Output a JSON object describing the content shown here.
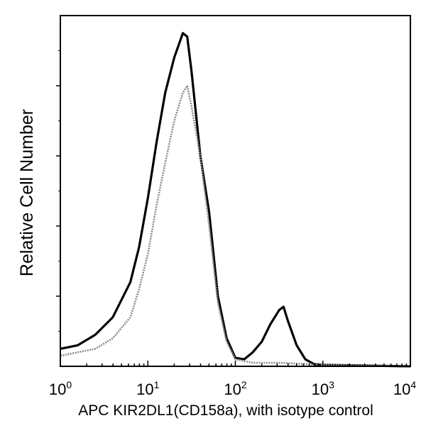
{
  "chart_data": {
    "type": "line",
    "title": "",
    "xlabel": "APC KIR2DL1(CD158a), with isotype control",
    "ylabel": "Relative Cell Number",
    "x_scale": "log",
    "xlim": [
      1,
      10000
    ],
    "ylim": [
      0,
      5
    ],
    "x_ticks": [
      {
        "base": "10",
        "exp": "0",
        "value": 1
      },
      {
        "base": "10",
        "exp": "1",
        "value": 10
      },
      {
        "base": "10",
        "exp": "2",
        "value": 100
      },
      {
        "base": "10",
        "exp": "3",
        "value": 1000
      },
      {
        "base": "10",
        "exp": "4",
        "value": 10000
      }
    ],
    "y_ticks_unlabeled": [
      1,
      2,
      3,
      4
    ],
    "grid": false,
    "legend": "none",
    "series": [
      {
        "color": "#000000",
        "x": [
          1,
          1.58,
          2.51,
          3.98,
          6.31,
          7.94,
          10,
          12.6,
          15.8,
          20,
          25.1,
          28.2,
          31.6,
          39.8,
          50.1,
          63.1,
          79.4,
          100,
          126,
          158,
          200,
          251,
          316,
          355,
          398,
          501,
          631,
          794,
          1000,
          10000
        ],
        "y": [
          0.25,
          0.3,
          0.45,
          0.7,
          1.2,
          1.7,
          2.4,
          3.2,
          3.9,
          4.4,
          4.75,
          4.7,
          4.2,
          3.0,
          2.2,
          1.0,
          0.4,
          0.12,
          0.1,
          0.2,
          0.35,
          0.6,
          0.8,
          0.85,
          0.65,
          0.3,
          0.1,
          0.03,
          0.02,
          0
        ]
      },
      {
        "color": "#8a8a8a",
        "x": [
          1,
          2.51,
          3.98,
          6.31,
          7.94,
          10,
          12.6,
          15.8,
          20,
          25.1,
          28.2,
          31.6,
          39.8,
          50.1,
          63.1,
          79.4,
          100,
          158,
          316,
          1000,
          10000
        ],
        "y": [
          0.15,
          0.25,
          0.4,
          0.7,
          1.1,
          1.6,
          2.3,
          2.9,
          3.5,
          3.9,
          4.0,
          3.7,
          3.0,
          2.0,
          0.9,
          0.35,
          0.1,
          0.05,
          0.05,
          0.02,
          0
        ]
      }
    ]
  }
}
